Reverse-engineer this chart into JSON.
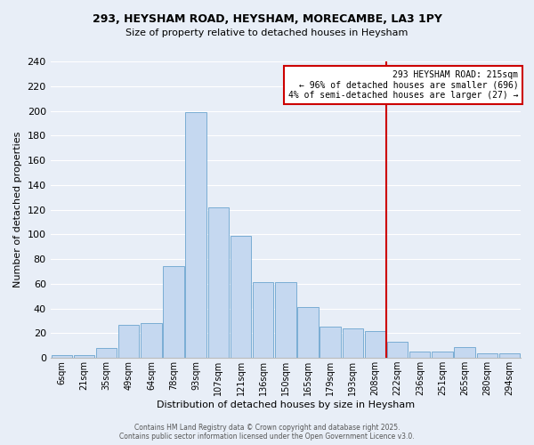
{
  "title_line1": "293, HEYSHAM ROAD, HEYSHAM, MORECAMBE, LA3 1PY",
  "title_line2": "Size of property relative to detached houses in Heysham",
  "xlabel": "Distribution of detached houses by size in Heysham",
  "ylabel": "Number of detached properties",
  "bar_color": "#c5d8f0",
  "bar_edge_color": "#7aadd4",
  "background_color": "#e8eef7",
  "categories": [
    "6sqm",
    "21sqm",
    "35sqm",
    "49sqm",
    "64sqm",
    "78sqm",
    "93sqm",
    "107sqm",
    "121sqm",
    "136sqm",
    "150sqm",
    "165sqm",
    "179sqm",
    "193sqm",
    "208sqm",
    "222sqm",
    "236sqm",
    "251sqm",
    "265sqm",
    "280sqm",
    "294sqm"
  ],
  "cat_numeric": [
    6,
    21,
    35,
    49,
    64,
    78,
    93,
    107,
    121,
    136,
    150,
    165,
    179,
    193,
    208,
    222,
    236,
    251,
    265,
    280,
    294
  ],
  "values": [
    2,
    2,
    8,
    27,
    28,
    74,
    199,
    122,
    99,
    61,
    61,
    41,
    25,
    24,
    22,
    13,
    5,
    5,
    9,
    4,
    4
  ],
  "vline_sqm": 215,
  "vline_color": "#cc0000",
  "annotation_line1": "293 HEYSHAM ROAD: 215sqm",
  "annotation_line2": "← 96% of detached houses are smaller (696)",
  "annotation_line3": "4% of semi-detached houses are larger (27) →",
  "annotation_box_color": "#ffffff",
  "annotation_border_color": "#cc0000",
  "ylim": [
    0,
    240
  ],
  "yticks": [
    0,
    20,
    40,
    60,
    80,
    100,
    120,
    140,
    160,
    180,
    200,
    220,
    240
  ],
  "footer_line1": "Contains HM Land Registry data © Crown copyright and database right 2025.",
  "footer_line2": "Contains public sector information licensed under the Open Government Licence v3.0.",
  "grid_color": "#ffffff"
}
